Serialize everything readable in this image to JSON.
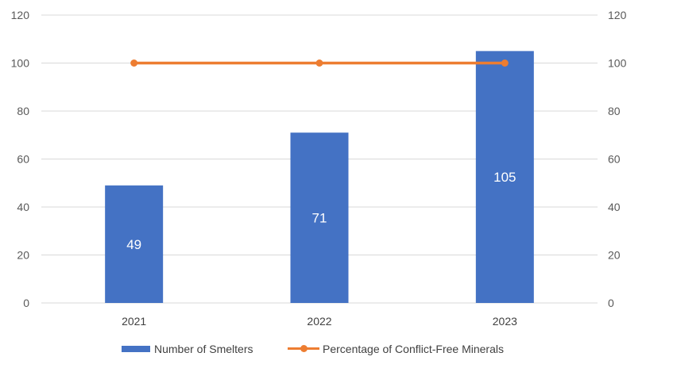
{
  "chart_data": {
    "type": "bar",
    "categories": [
      "2021",
      "2022",
      "2023"
    ],
    "series": [
      {
        "name": "Number of Smelters",
        "kind": "bar",
        "axis": "left",
        "values": [
          49,
          71,
          105
        ],
        "data_labels": [
          "49",
          "71",
          "105"
        ]
      },
      {
        "name": "Percentage of Conflict-Free Minerals",
        "kind": "line",
        "axis": "right",
        "values": [
          100,
          100,
          100
        ]
      }
    ],
    "y_left": {
      "ylim": [
        0,
        120
      ],
      "ticks": [
        "0",
        "20",
        "40",
        "60",
        "80",
        "100",
        "120"
      ]
    },
    "y_right": {
      "ylim": [
        0,
        120
      ],
      "ticks": [
        "0",
        "20",
        "40",
        "60",
        "80",
        "100",
        "120"
      ]
    },
    "grid": true,
    "legend_position": "bottom",
    "colors": {
      "bar": "#4472C4",
      "line": "#ED7D31",
      "grid": "#D9D9D9"
    }
  }
}
